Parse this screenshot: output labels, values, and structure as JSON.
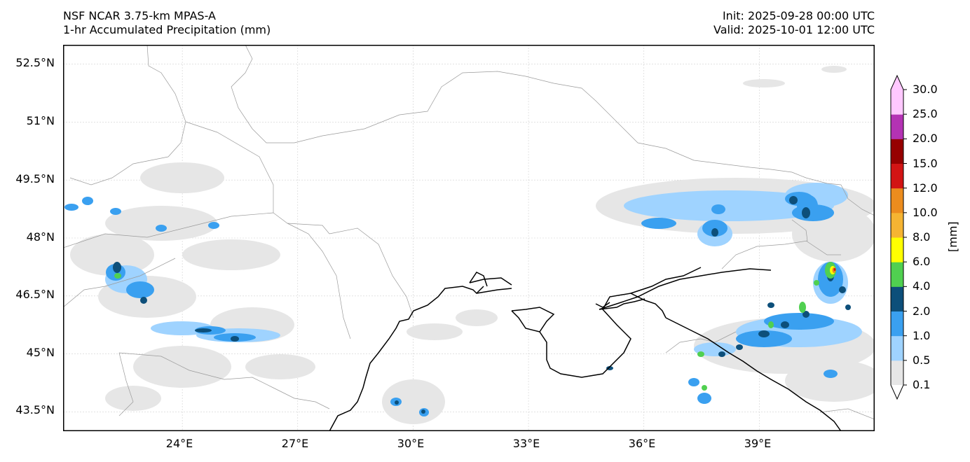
{
  "header": {
    "model": "NSF NCAR 3.75-km MPAS-A",
    "field": "1-hr Accumulated Precipitation (mm)",
    "init": "Init: 2025-09-28 00:00 UTC",
    "valid": "Valid: 2025-10-01 12:00 UTC"
  },
  "axes": {
    "lat_labels": [
      "52.5°N",
      "51°N",
      "49.5°N",
      "48°N",
      "46.5°N",
      "45°N",
      "43.5°N"
    ],
    "lat_values": [
      52.5,
      51,
      49.5,
      48,
      46.5,
      45,
      43.5
    ],
    "lon_labels": [
      "24°E",
      "27°E",
      "30°E",
      "33°E",
      "36°E",
      "39°E"
    ],
    "lon_values": [
      24,
      27,
      30,
      33,
      36,
      39
    ],
    "lon_range": [
      20.9,
      42.0
    ],
    "lat_range": [
      43.0,
      53.0
    ]
  },
  "colorbar": {
    "unit": "[mm]",
    "levels": [
      "0.1",
      "0.5",
      "1.0",
      "2.0",
      "4.0",
      "6.0",
      "8.0",
      "10.0",
      "12.0",
      "15.0",
      "20.0",
      "25.0",
      "30.0"
    ],
    "colors": [
      "#e6e6e6",
      "#9fd3ff",
      "#3aa0f0",
      "#0d4f7a",
      "#50d050",
      "#ffff00",
      "#f5b432",
      "#ec8c1e",
      "#d21414",
      "#960000",
      "#b432b4",
      "#ffc8ff"
    ]
  },
  "precip_regions": [
    {
      "lon": 23.2,
      "lat": 47.2,
      "level": 3
    },
    {
      "lon": 24.9,
      "lat": 45.6,
      "level": 2
    },
    {
      "lon": 29.8,
      "lat": 43.7,
      "level": 2
    },
    {
      "lon": 35.3,
      "lat": 44.7,
      "level": 2
    },
    {
      "lon": 39.8,
      "lat": 48.8,
      "level": 2
    },
    {
      "lon": 38.3,
      "lat": 45.6,
      "level": 3
    },
    {
      "lon": 40.9,
      "lat": 47.1,
      "level": 8
    }
  ]
}
